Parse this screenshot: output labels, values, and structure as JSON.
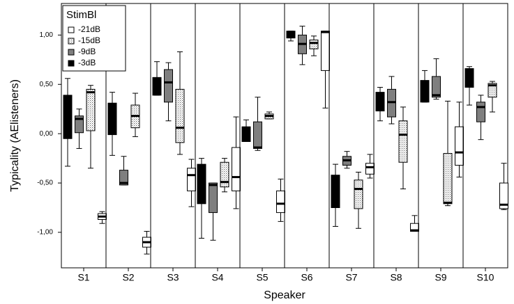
{
  "chart_data": {
    "type": "box",
    "x_label": "Speaker",
    "y_label": "Typicality (AElisteners)",
    "legend_title": "StimBl",
    "legend": "top-left",
    "categories": [
      "S1",
      "S2",
      "S3",
      "S4",
      "S5",
      "S6",
      "S7",
      "S8",
      "S9",
      "S10"
    ],
    "ylim": [
      -1.36,
      1.32
    ],
    "yticks": [
      {
        "value": -1,
        "label": "-1,00"
      },
      {
        "value": -0.5,
        "label": "-0,50"
      },
      {
        "value": 0,
        "label": "0,00"
      },
      {
        "value": 0.5,
        "label": "0,50"
      },
      {
        "value": 1,
        "label": "1,00"
      }
    ],
    "series": [
      {
        "name": "-21dB",
        "color": "#ffffff",
        "pattern": false,
        "min": [
          -0.91,
          -1.22,
          -0.74,
          -0.76,
          -0.89,
          0.26,
          -0.45,
          -0.99,
          -0.44,
          -0.77
        ],
        "q1": [
          -0.87,
          -1.15,
          -0.58,
          -0.58,
          -0.8,
          0.64,
          -0.41,
          -0.99,
          -0.32,
          -0.76
        ],
        "median": [
          -0.84,
          -1.1,
          -0.42,
          -0.44,
          -0.71,
          1.03,
          -0.34,
          -0.98,
          -0.19,
          -0.72
        ],
        "q3": [
          -0.81,
          -1.05,
          -0.35,
          -0.14,
          -0.58,
          1.04,
          -0.3,
          -0.91,
          0.07,
          -0.5
        ],
        "max": [
          -0.79,
          -0.99,
          -0.26,
          0.17,
          -0.46,
          1.04,
          -0.21,
          -0.83,
          0.32,
          -0.3
        ]
      },
      {
        "name": "-15dB",
        "color": "#d9d9d9",
        "pattern": true,
        "min": [
          -0.35,
          -0.03,
          -0.21,
          -0.59,
          0.15,
          0.79,
          -0.96,
          -0.56,
          -0.73,
          0.22
        ],
        "q1": [
          0.03,
          0.06,
          -0.09,
          -0.54,
          0.15,
          0.86,
          -0.76,
          -0.29,
          -0.71,
          0.37
        ],
        "median": [
          0.42,
          0.18,
          0.06,
          -0.49,
          0.18,
          0.92,
          -0.56,
          -0.01,
          -0.7,
          0.49
        ],
        "q3": [
          0.45,
          0.29,
          0.45,
          -0.29,
          0.2,
          0.95,
          -0.47,
          0.13,
          -0.2,
          0.51
        ],
        "max": [
          0.49,
          0.41,
          0.83,
          -0.25,
          0.22,
          0.99,
          -0.39,
          0.27,
          0.33,
          0.53
        ]
      },
      {
        "name": "-9dB",
        "color": "#7f7f7f",
        "pattern": false,
        "min": [
          -0.15,
          -0.52,
          0.13,
          -1.08,
          -0.17,
          0.7,
          -0.35,
          0.1,
          0.35,
          -0.06
        ],
        "q1": [
          0.01,
          -0.52,
          0.32,
          -0.8,
          -0.15,
          0.81,
          -0.32,
          0.17,
          0.37,
          0.12
        ],
        "median": [
          0.15,
          -0.5,
          0.52,
          -0.52,
          -0.14,
          0.91,
          -0.27,
          0.32,
          0.39,
          0.27
        ],
        "q3": [
          0.18,
          -0.37,
          0.65,
          -0.5,
          0.12,
          1.0,
          -0.23,
          0.45,
          0.58,
          0.32
        ],
        "max": [
          0.25,
          -0.23,
          0.72,
          -0.5,
          0.37,
          1.09,
          -0.18,
          0.58,
          0.76,
          0.39
        ]
      },
      {
        "name": "-3dB",
        "color": "#000000",
        "pattern": false,
        "min": [
          -0.33,
          -0.22,
          0.39,
          -1.06,
          -0.08,
          0.94,
          -0.94,
          0.13,
          0.32,
          0.29
        ],
        "q1": [
          -0.05,
          -0.01,
          0.39,
          -0.71,
          -0.08,
          0.97,
          -0.75,
          0.23,
          0.32,
          0.47
        ],
        "median": [
          0.15,
          0.15,
          0.5,
          -0.5,
          0.0,
          1.02,
          -0.6,
          0.33,
          0.45,
          0.6
        ],
        "q3": [
          0.39,
          0.31,
          0.57,
          -0.31,
          0.07,
          1.04,
          -0.42,
          0.42,
          0.54,
          0.66
        ],
        "max": [
          0.56,
          0.42,
          0.73,
          -0.25,
          0.14,
          1.04,
          -0.31,
          0.47,
          0.64,
          0.68
        ]
      }
    ]
  }
}
